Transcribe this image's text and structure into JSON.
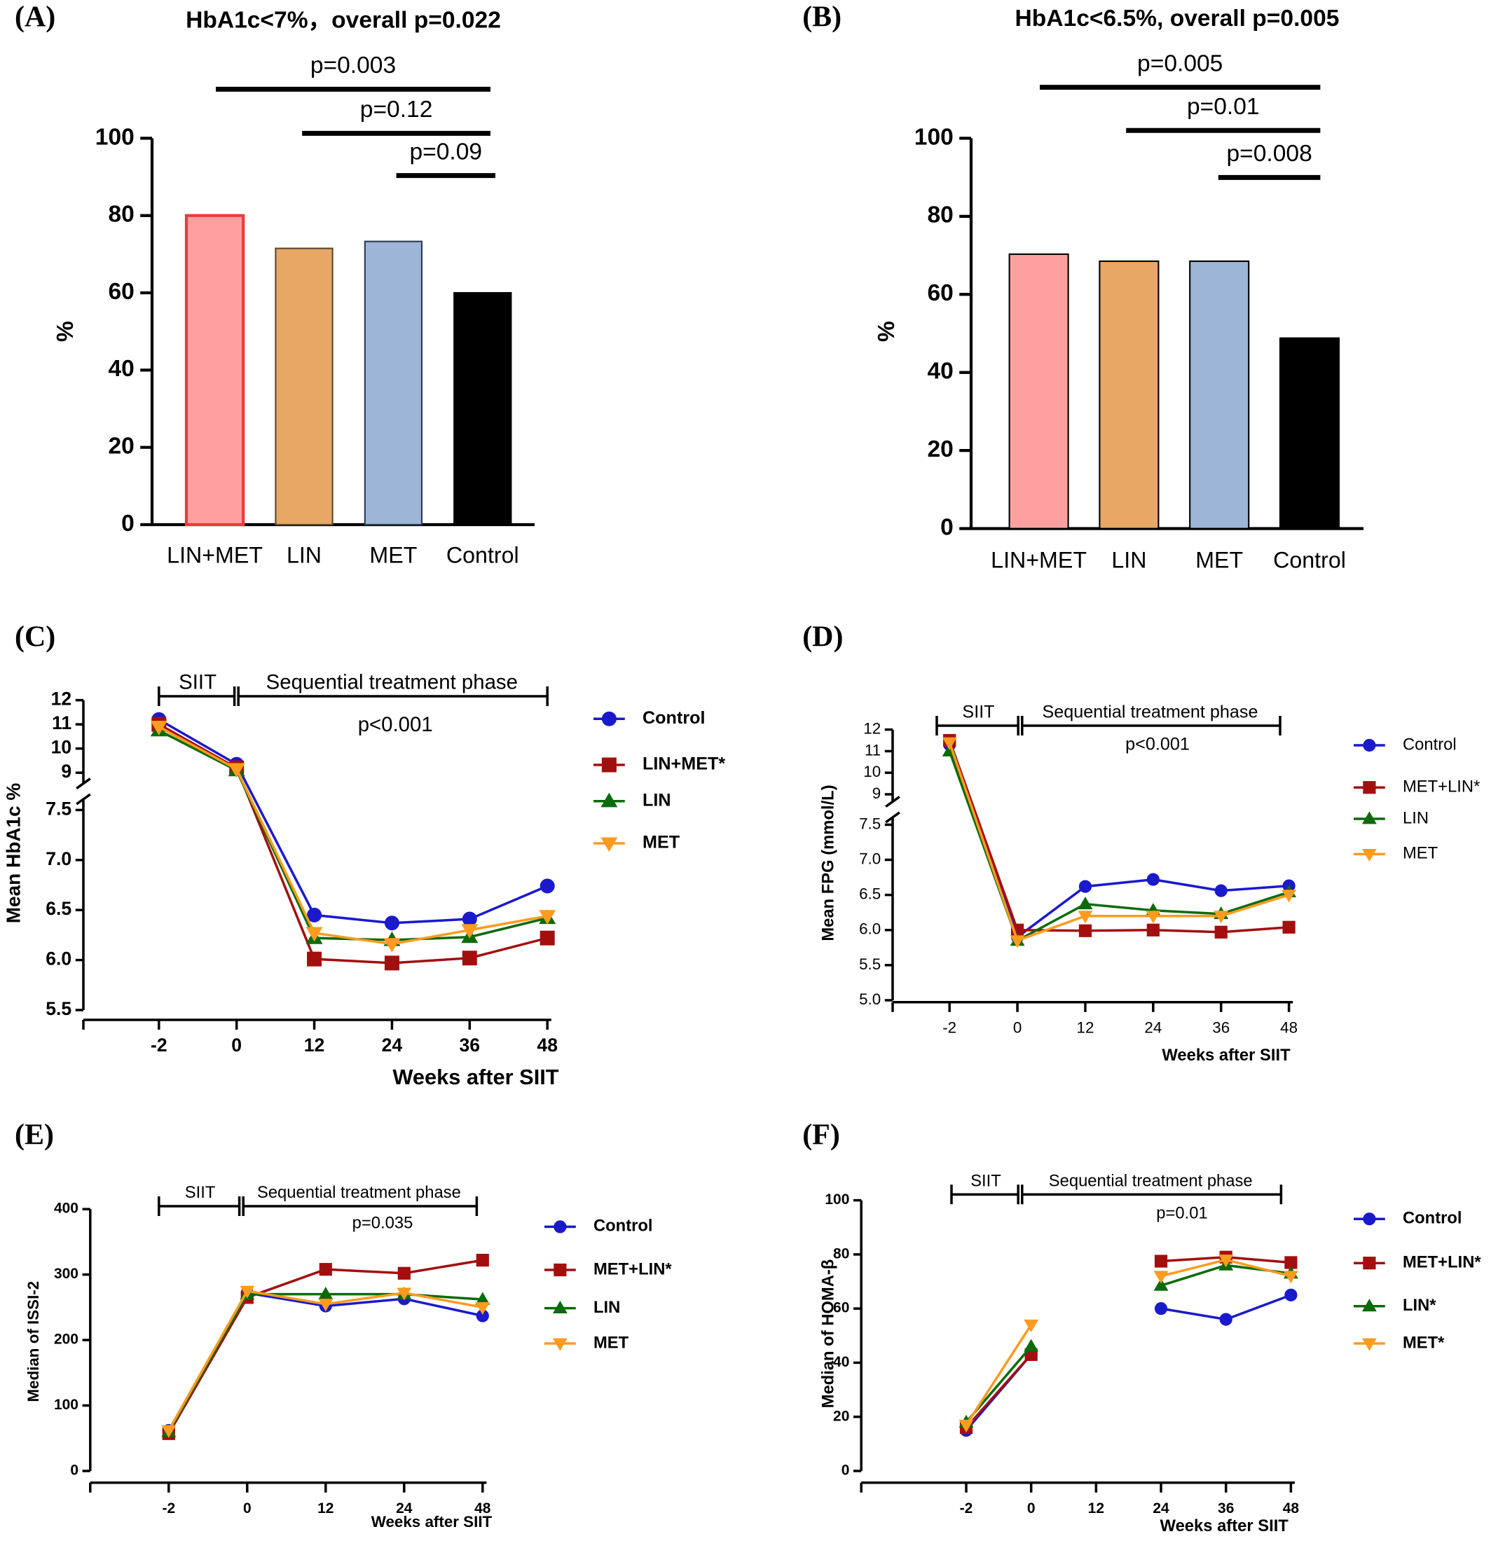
{
  "chart_data": [
    {
      "type": "bar",
      "panel_label": "(A)",
      "title": "HbA1c<7%，overall p=0.022",
      "categories": [
        "LIN+MET",
        "LIN",
        "MET",
        "Control"
      ],
      "values": [
        80,
        71.5,
        73.3,
        60
      ],
      "colors": [
        "#ffa0a0",
        "#e6a864",
        "#9db5d6",
        "#000000"
      ],
      "edgecolors": [
        "#e63c3c",
        "#5a4630",
        "#2b3b55",
        "#000000"
      ],
      "ylim": [
        0,
        100
      ],
      "yticks": [
        0,
        20,
        40,
        60,
        80,
        100
      ],
      "ylabel": "%",
      "comparisons": [
        "p=0.003",
        "p=0.12",
        "p=0.09"
      ]
    },
    {
      "type": "bar",
      "panel_label": "(B)",
      "title": "HbA1c<6.5%, overall p=0.005",
      "categories": [
        "LIN+MET",
        "LIN",
        "MET",
        "Control"
      ],
      "values": [
        70.3,
        68.5,
        68.5,
        48.8
      ],
      "colors": [
        "#ffa0a0",
        "#e6a864",
        "#9db5d6",
        "#000000"
      ],
      "edgecolors": [
        "#000000",
        "#000000",
        "#000000",
        "#000000"
      ],
      "ylim": [
        0,
        100
      ],
      "yticks": [
        0,
        20,
        40,
        60,
        80,
        100
      ],
      "ylabel": "%",
      "comparisons": [
        "p=0.005",
        "p=0.01",
        "p=0.008"
      ]
    },
    {
      "type": "line",
      "panel_label": "(C)",
      "categories": [
        "-2",
        "0",
        "12",
        "24",
        "36",
        "48"
      ],
      "series": [
        {
          "name": "Control",
          "color": "#1a1acc",
          "marker": "circle",
          "values": [
            11.2,
            9.35,
            6.45,
            6.37,
            6.41,
            6.74
          ]
        },
        {
          "name": "LIN+MET*",
          "color": "#a30f0f",
          "marker": "square",
          "values": [
            11.0,
            9.2,
            6.01,
            5.97,
            6.02,
            6.22
          ]
        },
        {
          "name": "LIN",
          "color": "#0b6b0b",
          "marker": "triangle",
          "values": [
            10.75,
            9.1,
            6.22,
            6.2,
            6.23,
            6.42
          ]
        },
        {
          "name": "MET",
          "color": "#ff9b1f",
          "marker": "triangle-down",
          "values": [
            10.9,
            9.15,
            6.27,
            6.16,
            6.3,
            6.44
          ]
        }
      ],
      "ylim": [
        5.5,
        12
      ],
      "ybreak": [
        7.5,
        9
      ],
      "yticks": [
        5.5,
        {
          "value": 6,
          "label": "6.0"
        },
        6.5,
        {
          "value": 7,
          "label": "7.0"
        },
        7.5,
        9,
        10,
        11,
        12
      ],
      "xlabel": "Weeks after SIIT",
      "ylabel": "Mean HbA1c %",
      "annotations": {
        "phase1": "SIIT",
        "phase2": "Sequential treatment phase",
        "p": "p<0.001"
      }
    },
    {
      "type": "line",
      "panel_label": "(D)",
      "categories": [
        "-2",
        "0",
        "12",
        "24",
        "36",
        "48"
      ],
      "series": [
        {
          "name": "Control",
          "color": "#1a1acc",
          "marker": "circle",
          "values": [
            11.3,
            5.9,
            6.62,
            6.72,
            6.56,
            6.63
          ]
        },
        {
          "name": "MET+LIN*",
          "color": "#a30f0f",
          "marker": "square",
          "values": [
            11.5,
            6.0,
            5.99,
            6.0,
            5.97,
            6.04
          ]
        },
        {
          "name": "LIN",
          "color": "#0b6b0b",
          "marker": "triangle",
          "values": [
            11.0,
            5.85,
            6.37,
            6.28,
            6.23,
            6.54
          ]
        },
        {
          "name": "MET",
          "color": "#ff9b1f",
          "marker": "triangle-down",
          "values": [
            11.4,
            5.85,
            6.2,
            6.2,
            6.2,
            6.5
          ]
        }
      ],
      "ylim": [
        5,
        12
      ],
      "ybreak": [
        7.5,
        9
      ],
      "yticks": [
        {
          "value": 5,
          "label": "5.0"
        },
        5.5,
        {
          "value": 6,
          "label": "6.0"
        },
        6.5,
        {
          "value": 7,
          "label": "7.0"
        },
        7.5,
        9,
        10,
        11,
        12
      ],
      "xlabel": "Weeks after SIIT",
      "ylabel": "Mean  FPG (mmol/L)",
      "annotations": {
        "phase1": "SIIT",
        "phase2": "Sequential treatment phase",
        "p": "p<0.001"
      }
    },
    {
      "type": "line",
      "panel_label": "(E)",
      "categories": [
        "-2",
        "0",
        "12",
        "24",
        "48"
      ],
      "series": [
        {
          "name": "Control",
          "color": "#1a1acc",
          "marker": "circle",
          "values": [
            62,
            272,
            252,
            263,
            237
          ]
        },
        {
          "name": "MET+LIN*",
          "color": "#a30f0f",
          "marker": "square",
          "values": [
            57,
            265,
            308,
            302,
            322
          ]
        },
        {
          "name": "LIN",
          "color": "#0b6b0b",
          "marker": "triangle",
          "values": [
            60,
            270,
            270,
            270,
            262
          ]
        },
        {
          "name": "MET",
          "color": "#ff9b1f",
          "marker": "triangle-down",
          "values": [
            62,
            275,
            255,
            272,
            250
          ]
        }
      ],
      "ylim": [
        0,
        400
      ],
      "yticks": [
        0,
        100,
        200,
        300,
        400
      ],
      "xlabel": "Weeks after SIIT",
      "ylabel": "Median of ISSI-2",
      "annotations": {
        "phase1": "SIIT",
        "phase2": "Sequential treatment phase",
        "p": "p=0.035"
      }
    },
    {
      "type": "line",
      "panel_label": "(F)",
      "categories": [
        "-2",
        "0",
        "12",
        "24",
        "36",
        "48"
      ],
      "series": [
        {
          "name": "Control",
          "color": "#1a1acc",
          "marker": "circle",
          "values": [
            15,
            43,
            null,
            60,
            56,
            65
          ]
        },
        {
          "name": "MET+LIN*",
          "color": "#a30f0f",
          "marker": "square",
          "values": [
            16,
            43,
            null,
            77.5,
            79,
            77
          ]
        },
        {
          "name": "LIN*",
          "color": "#0b6b0b",
          "marker": "triangle",
          "values": [
            18,
            46,
            null,
            68.5,
            76,
            73
          ]
        },
        {
          "name": "MET*",
          "color": "#ff9b1f",
          "marker": "triangle-down",
          "values": [
            17,
            54,
            null,
            72,
            78,
            72
          ]
        }
      ],
      "ylim": [
        0,
        100
      ],
      "yticks": [
        0,
        20,
        40,
        60,
        80,
        100
      ],
      "xlabel": "Weeks after SIIT",
      "ylabel": "Median of HOMA-β",
      "annotations": {
        "phase1": "SIIT",
        "phase2": "Sequential treatment phase",
        "p": "p=0.01"
      }
    }
  ]
}
